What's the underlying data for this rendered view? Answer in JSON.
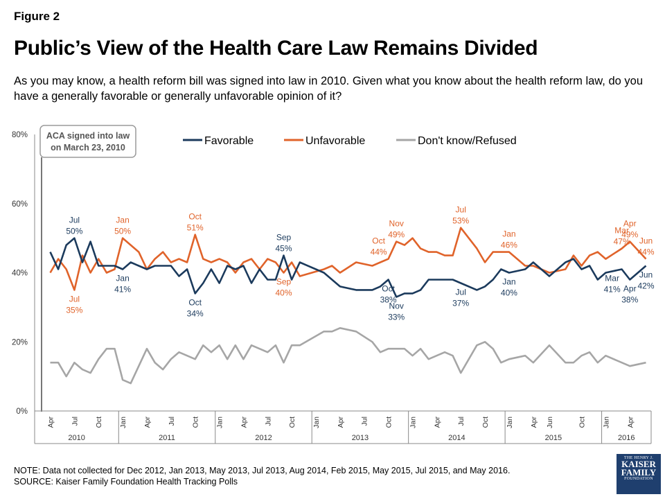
{
  "figure_label": "Figure 2",
  "title": "Public’s View of the Health Care Law Remains Divided",
  "subtitle": "As you may know, a health reform bill was signed into law in 2010. Given what you know about the health reform law, do you have a generally favorable or generally unfavorable opinion of it?",
  "annotation": [
    "ACA signed into law",
    "on March 23, 2010"
  ],
  "footer": {
    "note": "NOTE: Data not collected for Dec 2012, Jan 2013, May 2013, Jul 2013, Aug 2014, Feb 2015, May 2015, Jul 2015, and May 2016.",
    "source": "SOURCE: Kaiser Family Foundation Health Tracking Polls"
  },
  "logo": {
    "line1": "THE HENRY J.",
    "line2": "KAISER",
    "line3": "FAMILY",
    "line4": "FOUNDATION"
  },
  "colors": {
    "favorable": "#1b3a5c",
    "unfavorable": "#e0632a",
    "dontknow": "#a6a6a6",
    "axis": "#888888"
  },
  "chart_data": {
    "type": "line",
    "xlabel": "",
    "ylabel": "",
    "ylim": [
      0,
      80
    ],
    "yticks": [
      "0%",
      "20%",
      "40%",
      "60%",
      "80%"
    ],
    "grid": false,
    "legend_position": "top",
    "x_start": "2010-04",
    "x_end": "2016-06",
    "month_tick_labels": [
      "Apr",
      "Jul",
      "Oct",
      "Jan",
      "Apr",
      "Jul",
      "Oct",
      "Jan",
      "Apr",
      "Jul",
      "Oct",
      "Jan",
      "Apr",
      "Jul",
      "Oct",
      "Jan",
      "Apr",
      "Jul",
      "Oct",
      "Jan",
      "Apr",
      "Jun",
      "Oct",
      "Jan",
      "Apr",
      "Jun"
    ],
    "years": [
      {
        "label": "2010",
        "start": "2010-04",
        "end": "2010-12"
      },
      {
        "label": "2011",
        "start": "2011-01",
        "end": "2011-12"
      },
      {
        "label": "2012",
        "start": "2012-01",
        "end": "2012-12"
      },
      {
        "label": "2013",
        "start": "2013-01",
        "end": "2013-12"
      },
      {
        "label": "2014",
        "start": "2014-01",
        "end": "2014-12"
      },
      {
        "label": "2015",
        "start": "2015-01",
        "end": "2015-12"
      },
      {
        "label": "2016",
        "start": "2016-01",
        "end": "2016-06"
      }
    ],
    "series": [
      {
        "name": "Favorable",
        "key": "favorable",
        "points": [
          [
            "2010-04",
            46
          ],
          [
            "2010-05",
            41
          ],
          [
            "2010-06",
            48
          ],
          [
            "2010-07",
            50
          ],
          [
            "2010-08",
            43
          ],
          [
            "2010-09",
            49
          ],
          [
            "2010-10",
            42
          ],
          [
            "2010-11",
            42
          ],
          [
            "2010-12",
            42
          ],
          [
            "2011-01",
            41
          ],
          [
            "2011-02",
            43
          ],
          [
            "2011-03",
            42
          ],
          [
            "2011-04",
            41
          ],
          [
            "2011-05",
            42
          ],
          [
            "2011-06",
            42
          ],
          [
            "2011-07",
            42
          ],
          [
            "2011-08",
            39
          ],
          [
            "2011-09",
            41
          ],
          [
            "2011-10",
            34
          ],
          [
            "2011-11",
            37
          ],
          [
            "2011-12",
            41
          ],
          [
            "2012-01",
            37
          ],
          [
            "2012-02",
            42
          ],
          [
            "2012-03",
            41
          ],
          [
            "2012-04",
            42
          ],
          [
            "2012-05",
            37
          ],
          [
            "2012-06",
            41
          ],
          [
            "2012-07",
            38
          ],
          [
            "2012-08",
            38
          ],
          [
            "2012-09",
            45
          ],
          [
            "2012-10",
            38
          ],
          [
            "2012-11",
            43
          ],
          [
            "2013-02",
            40
          ],
          [
            "2013-03",
            38
          ],
          [
            "2013-04",
            36
          ],
          [
            "2013-06",
            35
          ],
          [
            "2013-08",
            35
          ],
          [
            "2013-09",
            36
          ],
          [
            "2013-10",
            38
          ],
          [
            "2013-11",
            33
          ],
          [
            "2013-12",
            34
          ],
          [
            "2014-01",
            34
          ],
          [
            "2014-02",
            35
          ],
          [
            "2014-03",
            38
          ],
          [
            "2014-04",
            38
          ],
          [
            "2014-05",
            38
          ],
          [
            "2014-06",
            38
          ],
          [
            "2014-07",
            37
          ],
          [
            "2014-09",
            35
          ],
          [
            "2014-10",
            36
          ],
          [
            "2014-11",
            38
          ],
          [
            "2014-12",
            41
          ],
          [
            "2015-01",
            40
          ],
          [
            "2015-03",
            41
          ],
          [
            "2015-04",
            43
          ],
          [
            "2015-06",
            39
          ],
          [
            "2015-08",
            43
          ],
          [
            "2015-09",
            44
          ],
          [
            "2015-10",
            41
          ],
          [
            "2015-11",
            42
          ],
          [
            "2015-12",
            38
          ],
          [
            "2016-01",
            40
          ],
          [
            "2016-03",
            41
          ],
          [
            "2016-04",
            38
          ],
          [
            "2016-06",
            42
          ]
        ]
      },
      {
        "name": "Unfavorable",
        "key": "unfavorable",
        "points": [
          [
            "2010-04",
            40
          ],
          [
            "2010-05",
            44
          ],
          [
            "2010-06",
            41
          ],
          [
            "2010-07",
            35
          ],
          [
            "2010-08",
            45
          ],
          [
            "2010-09",
            40
          ],
          [
            "2010-10",
            44
          ],
          [
            "2010-11",
            40
          ],
          [
            "2010-12",
            41
          ],
          [
            "2011-01",
            50
          ],
          [
            "2011-02",
            48
          ],
          [
            "2011-03",
            46
          ],
          [
            "2011-04",
            41
          ],
          [
            "2011-05",
            44
          ],
          [
            "2011-06",
            46
          ],
          [
            "2011-07",
            43
          ],
          [
            "2011-08",
            44
          ],
          [
            "2011-09",
            43
          ],
          [
            "2011-10",
            51
          ],
          [
            "2011-11",
            44
          ],
          [
            "2011-12",
            43
          ],
          [
            "2012-01",
            44
          ],
          [
            "2012-02",
            43
          ],
          [
            "2012-03",
            40
          ],
          [
            "2012-04",
            43
          ],
          [
            "2012-05",
            44
          ],
          [
            "2012-06",
            41
          ],
          [
            "2012-07",
            44
          ],
          [
            "2012-08",
            43
          ],
          [
            "2012-09",
            40
          ],
          [
            "2012-10",
            43
          ],
          [
            "2012-11",
            39
          ],
          [
            "2013-02",
            41
          ],
          [
            "2013-03",
            42
          ],
          [
            "2013-04",
            40
          ],
          [
            "2013-06",
            43
          ],
          [
            "2013-08",
            42
          ],
          [
            "2013-09",
            43
          ],
          [
            "2013-10",
            44
          ],
          [
            "2013-11",
            49
          ],
          [
            "2013-12",
            48
          ],
          [
            "2014-01",
            50
          ],
          [
            "2014-02",
            47
          ],
          [
            "2014-03",
            46
          ],
          [
            "2014-04",
            46
          ],
          [
            "2014-05",
            45
          ],
          [
            "2014-06",
            45
          ],
          [
            "2014-07",
            53
          ],
          [
            "2014-09",
            47
          ],
          [
            "2014-10",
            43
          ],
          [
            "2014-11",
            46
          ],
          [
            "2014-12",
            46
          ],
          [
            "2015-01",
            46
          ],
          [
            "2015-03",
            42
          ],
          [
            "2015-04",
            42
          ],
          [
            "2015-06",
            40
          ],
          [
            "2015-08",
            41
          ],
          [
            "2015-09",
            45
          ],
          [
            "2015-10",
            42
          ],
          [
            "2015-11",
            45
          ],
          [
            "2015-12",
            46
          ],
          [
            "2016-01",
            44
          ],
          [
            "2016-03",
            47
          ],
          [
            "2016-04",
            49
          ],
          [
            "2016-06",
            44
          ]
        ]
      },
      {
        "name": "Don't know/Refused",
        "key": "dontknow",
        "points": [
          [
            "2010-04",
            14
          ],
          [
            "2010-05",
            14
          ],
          [
            "2010-06",
            10
          ],
          [
            "2010-07",
            14
          ],
          [
            "2010-08",
            12
          ],
          [
            "2010-09",
            11
          ],
          [
            "2010-10",
            15
          ],
          [
            "2010-11",
            18
          ],
          [
            "2010-12",
            18
          ],
          [
            "2011-01",
            9
          ],
          [
            "2011-02",
            8
          ],
          [
            "2011-03",
            13
          ],
          [
            "2011-04",
            18
          ],
          [
            "2011-05",
            14
          ],
          [
            "2011-06",
            12
          ],
          [
            "2011-07",
            15
          ],
          [
            "2011-08",
            17
          ],
          [
            "2011-09",
            16
          ],
          [
            "2011-10",
            15
          ],
          [
            "2011-11",
            19
          ],
          [
            "2011-12",
            17
          ],
          [
            "2012-01",
            19
          ],
          [
            "2012-02",
            15
          ],
          [
            "2012-03",
            19
          ],
          [
            "2012-04",
            15
          ],
          [
            "2012-05",
            19
          ],
          [
            "2012-06",
            18
          ],
          [
            "2012-07",
            17
          ],
          [
            "2012-08",
            19
          ],
          [
            "2012-09",
            14
          ],
          [
            "2012-10",
            19
          ],
          [
            "2012-11",
            19
          ],
          [
            "2013-02",
            23
          ],
          [
            "2013-03",
            23
          ],
          [
            "2013-04",
            24
          ],
          [
            "2013-06",
            23
          ],
          [
            "2013-08",
            20
          ],
          [
            "2013-09",
            17
          ],
          [
            "2013-10",
            18
          ],
          [
            "2013-11",
            18
          ],
          [
            "2013-12",
            18
          ],
          [
            "2014-01",
            16
          ],
          [
            "2014-02",
            18
          ],
          [
            "2014-03",
            15
          ],
          [
            "2014-04",
            16
          ],
          [
            "2014-05",
            17
          ],
          [
            "2014-06",
            16
          ],
          [
            "2014-07",
            11
          ],
          [
            "2014-09",
            19
          ],
          [
            "2014-10",
            20
          ],
          [
            "2014-11",
            18
          ],
          [
            "2014-12",
            14
          ],
          [
            "2015-01",
            15
          ],
          [
            "2015-03",
            16
          ],
          [
            "2015-04",
            14
          ],
          [
            "2015-06",
            19
          ],
          [
            "2015-08",
            14
          ],
          [
            "2015-09",
            14
          ],
          [
            "2015-10",
            16
          ],
          [
            "2015-11",
            17
          ],
          [
            "2015-12",
            14
          ],
          [
            "2016-01",
            16
          ],
          [
            "2016-03",
            14
          ],
          [
            "2016-04",
            13
          ],
          [
            "2016-06",
            14
          ]
        ]
      }
    ],
    "data_labels": [
      {
        "series": "favorable",
        "date": "2010-07",
        "lines": [
          "Jul",
          "50%"
        ],
        "place": "above"
      },
      {
        "series": "favorable",
        "date": "2011-01",
        "lines": [
          "Jan",
          "41%"
        ],
        "place": "below"
      },
      {
        "series": "favorable",
        "date": "2011-10",
        "lines": [
          "Oct",
          "34%"
        ],
        "place": "below"
      },
      {
        "series": "favorable",
        "date": "2012-09",
        "lines": [
          "Sep",
          "45%"
        ],
        "place": "above"
      },
      {
        "series": "favorable",
        "date": "2013-10",
        "lines": [
          "Oct",
          "38%"
        ],
        "place": "below"
      },
      {
        "series": "favorable",
        "date": "2013-11",
        "lines": [
          "Nov",
          "33%"
        ],
        "place": "below"
      },
      {
        "series": "favorable",
        "date": "2014-07",
        "lines": [
          "Jul",
          "37%"
        ],
        "place": "below"
      },
      {
        "series": "favorable",
        "date": "2015-01",
        "lines": [
          "Jan",
          "40%"
        ],
        "place": "below"
      },
      {
        "series": "favorable",
        "date": "2016-03",
        "lines": [
          "Mar",
          "41%"
        ],
        "place": "below-left"
      },
      {
        "series": "favorable",
        "date": "2016-04",
        "lines": [
          "Apr",
          "38%"
        ],
        "place": "below"
      },
      {
        "series": "favorable",
        "date": "2016-06",
        "lines": [
          "Jun",
          "42%"
        ],
        "place": "below"
      },
      {
        "series": "unfavorable",
        "date": "2010-07",
        "lines": [
          "Jul",
          "35%"
        ],
        "place": "below"
      },
      {
        "series": "unfavorable",
        "date": "2011-01",
        "lines": [
          "Jan",
          "50%"
        ],
        "place": "above"
      },
      {
        "series": "unfavorable",
        "date": "2011-10",
        "lines": [
          "Oct",
          "51%"
        ],
        "place": "above"
      },
      {
        "series": "unfavorable",
        "date": "2012-09",
        "lines": [
          "Sep",
          "40%"
        ],
        "place": "below"
      },
      {
        "series": "unfavorable",
        "date": "2013-10",
        "lines": [
          "Oct",
          "44%"
        ],
        "place": "above-left"
      },
      {
        "series": "unfavorable",
        "date": "2013-11",
        "lines": [
          "Nov",
          "49%"
        ],
        "place": "above"
      },
      {
        "series": "unfavorable",
        "date": "2014-07",
        "lines": [
          "Jul",
          "53%"
        ],
        "place": "above"
      },
      {
        "series": "unfavorable",
        "date": "2015-01",
        "lines": [
          "Jan",
          "46%"
        ],
        "place": "above"
      },
      {
        "series": "unfavorable",
        "date": "2016-03",
        "lines": [
          "Mar",
          "47%"
        ],
        "place": "above"
      },
      {
        "series": "unfavorable",
        "date": "2016-04",
        "lines": [
          "Apr",
          "49%"
        ],
        "place": "above"
      },
      {
        "series": "unfavorable",
        "date": "2016-06",
        "lines": [
          "Jun",
          "44%"
        ],
        "place": "above"
      }
    ]
  }
}
